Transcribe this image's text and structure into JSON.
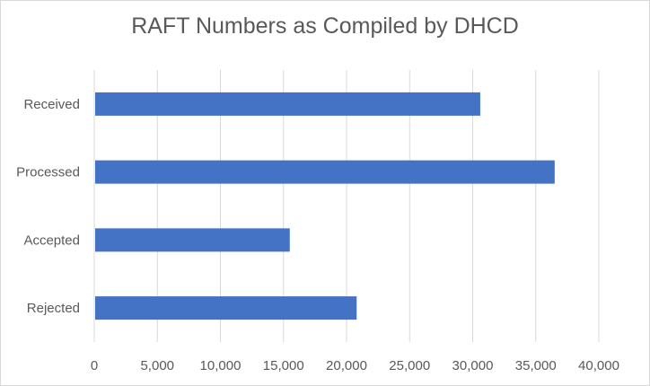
{
  "chart_data": {
    "type": "bar",
    "orientation": "horizontal",
    "title": "RAFT Numbers as Compiled by DHCD",
    "xlabel": "",
    "ylabel": "",
    "categories": [
      "Received",
      "Processed",
      "Accepted",
      "Rejected"
    ],
    "values": [
      30600,
      36500,
      15500,
      20800
    ],
    "xlim": [
      0,
      40000
    ],
    "tick_values": [
      0,
      5000,
      10000,
      15000,
      20000,
      25000,
      30000,
      35000,
      40000
    ],
    "tick_labels": [
      "0",
      "5,000",
      "10,000",
      "15,000",
      "20,000",
      "25,000",
      "30,000",
      "35,000",
      "40,000"
    ],
    "grid": true,
    "legend": "none",
    "bar_color": "#4472c4",
    "grid_color": "#d9d9d9"
  }
}
